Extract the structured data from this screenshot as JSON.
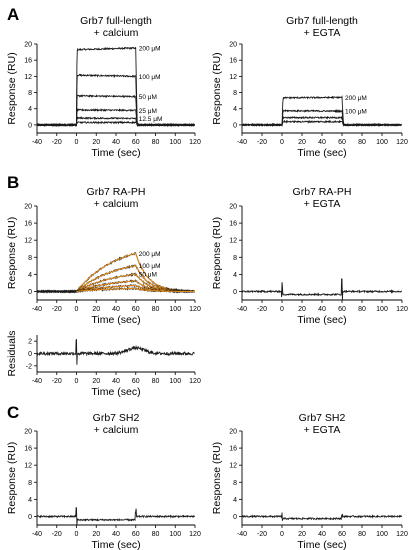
{
  "panel_letters": [
    "A",
    "B",
    "C"
  ],
  "chart_data": [
    {
      "panel": "A",
      "type": "line",
      "title": "Grb7 full-length\n+ calcium",
      "xlabel": "Time (sec)",
      "ylabel": "Response (RU)",
      "xlim": [
        -40,
        120
      ],
      "ylim": [
        -2,
        20
      ],
      "xticks": [
        -40,
        -20,
        0,
        20,
        40,
        60,
        80,
        100,
        120
      ],
      "yticks": [
        0,
        4,
        8,
        12,
        16,
        20
      ],
      "injection": [
        0,
        60
      ],
      "fit": false,
      "series": [
        {
          "label": "200 μM",
          "plateau": 18.6,
          "rise": 0.5,
          "end": 19.0
        },
        {
          "label": "100 μM",
          "plateau": 12.3,
          "rise": 0.5,
          "end": 12.0
        },
        {
          "label": "50 μM",
          "plateau": 7.2,
          "rise": 0.5,
          "end": 7.0
        },
        {
          "label": "25 μM",
          "plateau": 3.7,
          "rise": 0.5,
          "end": 3.6
        },
        {
          "label": "12.5 μM",
          "plateau": 1.7,
          "rise": 0.5,
          "end": 1.6
        },
        {
          "label": "",
          "plateau": 0.6,
          "rise": 0.5,
          "end": 0.6
        }
      ]
    },
    {
      "panel": "A",
      "type": "line",
      "title": "Grb7 full-length\n+ EGTA",
      "xlabel": "Time (sec)",
      "ylabel": "Response (RU)",
      "xlim": [
        -40,
        120
      ],
      "ylim": [
        -2,
        20
      ],
      "xticks": [
        -40,
        -20,
        0,
        20,
        40,
        60,
        80,
        100,
        120
      ],
      "yticks": [
        0,
        4,
        8,
        12,
        16,
        20
      ],
      "injection": [
        0,
        60
      ],
      "fit": false,
      "series": [
        {
          "label": "200 μM",
          "plateau": 6.7,
          "rise": 1.0,
          "end": 6.8
        },
        {
          "label": "100 μM",
          "plateau": 3.5,
          "rise": 1.0,
          "end": 3.4
        },
        {
          "label": "",
          "plateau": 1.8,
          "rise": 1.0,
          "end": 1.8
        },
        {
          "label": "",
          "plateau": 0.8,
          "rise": 1.0,
          "end": 0.8
        }
      ]
    },
    {
      "panel": "B",
      "type": "line",
      "title": "Grb7 RA-PH\n+ calcium",
      "xlabel": "Time (sec)",
      "ylabel": "Response (RU)",
      "xlim": [
        -40,
        120
      ],
      "ylim": [
        -2,
        20
      ],
      "xticks": [
        -40,
        -20,
        0,
        20,
        40,
        60,
        80,
        100,
        120
      ],
      "yticks": [
        0,
        4,
        8,
        12,
        16,
        20
      ],
      "injection": [
        0,
        60
      ],
      "fit": true,
      "series": [
        {
          "label": "200 μM",
          "plateau": 11.5,
          "rate": 0.025,
          "end": 8.9
        },
        {
          "label": "100 μM",
          "plateau": 7.8,
          "rate": 0.025,
          "end": 6.1
        },
        {
          "label": "50 μM",
          "plateau": 5.2,
          "rate": 0.025,
          "end": 4.1
        },
        {
          "label": "",
          "plateau": 3.2,
          "rate": 0.025,
          "end": 2.5
        },
        {
          "label": "",
          "plateau": 1.8,
          "rate": 0.025,
          "end": 1.4
        },
        {
          "label": "",
          "plateau": 0.9,
          "rate": 0.025,
          "end": 0.7
        }
      ]
    },
    {
      "panel": "B",
      "type": "line",
      "title": "Grb7 RA-PH\n+ EGTA",
      "xlabel": "Time (sec)",
      "ylabel": "Response (RU)",
      "xlim": [
        -40,
        120
      ],
      "ylim": [
        -2,
        20
      ],
      "xticks": [
        -40,
        -20,
        0,
        20,
        40,
        60,
        80,
        100,
        120
      ],
      "yticks": [
        0,
        4,
        8,
        12,
        16,
        20
      ],
      "injection": [
        0,
        60
      ],
      "fit": false,
      "series": [
        {
          "label": "",
          "plateau": 0,
          "shift": -0.7,
          "spikes": [
            [
              0,
              2.0
            ],
            [
              60,
              3.5
            ]
          ]
        }
      ]
    },
    {
      "panel": "B-residuals",
      "type": "line",
      "title": "",
      "xlabel": "Time (sec)",
      "ylabel": "Residuals",
      "xlim": [
        -40,
        120
      ],
      "ylim": [
        -3,
        3
      ],
      "xticks": [
        -40,
        -20,
        0,
        20,
        40,
        60,
        80,
        100,
        120
      ],
      "yticks": [
        -2,
        0,
        2
      ],
      "series": [
        {
          "label": "",
          "plateau": 0,
          "noise": 0.5,
          "bump": [
            60,
            0.9
          ],
          "spikes": [
            [
              0,
              2.3
            ]
          ]
        }
      ]
    },
    {
      "panel": "C",
      "type": "line",
      "title": "Grb7 SH2\n+ calcium",
      "xlabel": "Time (sec)",
      "ylabel": "Response (RU)",
      "xlim": [
        -40,
        120
      ],
      "ylim": [
        -2,
        20
      ],
      "xticks": [
        -40,
        -20,
        0,
        20,
        40,
        60,
        80,
        100,
        120
      ],
      "yticks": [
        0,
        4,
        8,
        12,
        16,
        20
      ],
      "injection": [
        0,
        60
      ],
      "fit": false,
      "series": [
        {
          "label": "",
          "plateau": 0,
          "shift": -0.8,
          "spikes": [
            [
              0,
              2.0
            ],
            [
              60,
              1.8
            ]
          ]
        }
      ]
    },
    {
      "panel": "C",
      "type": "line",
      "title": "Grb7 SH2\n+ EGTA",
      "xlabel": "Time (sec)",
      "ylabel": "Response (RU)",
      "xlim": [
        -40,
        120
      ],
      "ylim": [
        -2,
        20
      ],
      "xticks": [
        -40,
        -20,
        0,
        20,
        40,
        60,
        80,
        100,
        120
      ],
      "yticks": [
        0,
        4,
        8,
        12,
        16,
        20
      ],
      "injection": [
        0,
        60
      ],
      "fit": false,
      "series": [
        {
          "label": "",
          "plateau": 0,
          "shift": -0.5,
          "spikes": [
            [
              0,
              0.8
            ],
            [
              60,
              0.6
            ]
          ]
        }
      ]
    }
  ]
}
